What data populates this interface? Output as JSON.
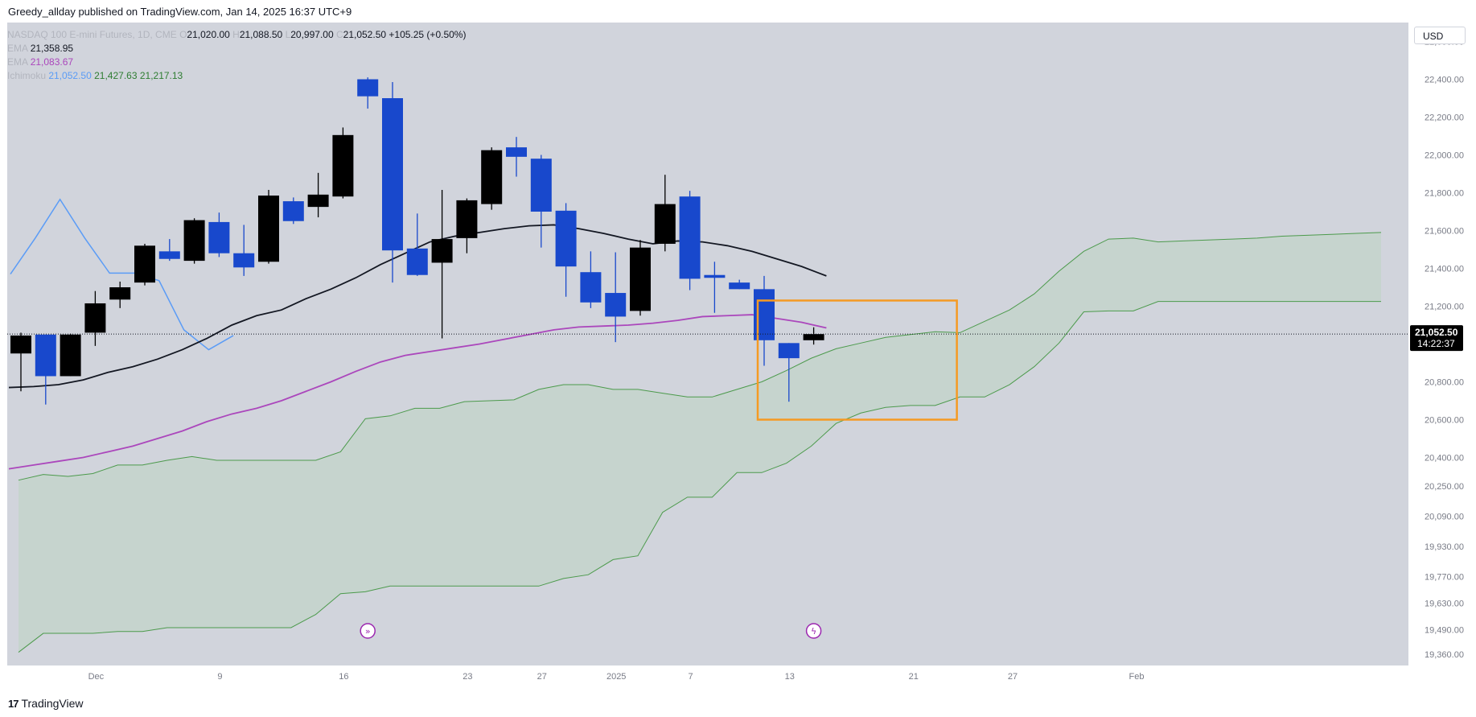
{
  "header": {
    "published_line": "Greedy_allday published on TradingView.com, Jan 14, 2025 16:37 UTC+9"
  },
  "legend": {
    "symbol": "NASDAQ 100 E-mini Futures, 1D, CME",
    "open_label": "O",
    "open": "21,020.00",
    "high_label": "H",
    "high": "21,088.50",
    "low_label": "L",
    "low": "20,997.00",
    "close_label": "C",
    "close": "21,052.50",
    "change": "+105.25 (+0.50%)",
    "ema1_label": "EMA",
    "ema1_value": "21,358.95",
    "ema2_label": "EMA",
    "ema2_value": "21,083.67",
    "ichimoku_label": "Ichimoku",
    "ichimoku_v1": "21,052.50",
    "ichimoku_v2": "21,427.63",
    "ichimoku_v3": "21,217.13"
  },
  "currency": "USD",
  "price_tag": {
    "price": "21,052.50",
    "countdown": "14:22:37"
  },
  "footer": {
    "brand": "TradingView",
    "logo": "17"
  },
  "colors": {
    "background": "#d1d4dc",
    "bull": "#000000",
    "bear": "#1848cc",
    "ema_long": "#131722",
    "ema_short": "#ab47bc",
    "cloud_line": "#4c9a4c",
    "cloud_fill": "#c2d4c8",
    "lagging": "#5b9cf6",
    "box": "#f59a23"
  },
  "chart_data": {
    "type": "candlestick",
    "title": "NASDAQ 100 E-mini Futures, 1D, CME",
    "y_ticks": [
      22600,
      22400,
      22200,
      22000,
      21800,
      21600,
      21400,
      21200,
      20800,
      20600,
      20400,
      20250,
      20090,
      19930,
      19770,
      19630,
      19490,
      19360
    ],
    "y_tick_labels": [
      "22,600.00",
      "22,400.00",
      "22,200.00",
      "22,000.00",
      "21,800.00",
      "21,600.00",
      "21,400.00",
      "21,200.00",
      "20,800.00",
      "20,600.00",
      "20,400.00",
      "20,250.00",
      "20,090.00",
      "19,930.00",
      "19,770.00",
      "19,630.00",
      "19,490.00",
      "19,360.00"
    ],
    "x_labels": [
      "Dec",
      "9",
      "16",
      "23",
      "27",
      "2025",
      "7",
      "13",
      "21",
      "27",
      "Feb"
    ],
    "candles": [
      {
        "o": 20950,
        "h": 21060,
        "l": 20750,
        "c": 21045
      },
      {
        "o": 21050,
        "h": 21050,
        "l": 20680,
        "c": 20830
      },
      {
        "o": 20830,
        "h": 21055,
        "l": 20830,
        "c": 21050
      },
      {
        "o": 21060,
        "h": 21280,
        "l": 20990,
        "c": 21215
      },
      {
        "o": 21235,
        "h": 21330,
        "l": 21190,
        "c": 21300
      },
      {
        "o": 21325,
        "h": 21530,
        "l": 21310,
        "c": 21520
      },
      {
        "o": 21490,
        "h": 21555,
        "l": 21440,
        "c": 21450
      },
      {
        "o": 21440,
        "h": 21665,
        "l": 21425,
        "c": 21655
      },
      {
        "o": 21645,
        "h": 21695,
        "l": 21460,
        "c": 21480
      },
      {
        "o": 21480,
        "h": 21630,
        "l": 21360,
        "c": 21405
      },
      {
        "o": 21435,
        "h": 21815,
        "l": 21425,
        "c": 21785
      },
      {
        "o": 21755,
        "h": 21775,
        "l": 21635,
        "c": 21650
      },
      {
        "o": 21725,
        "h": 21905,
        "l": 21670,
        "c": 21790
      },
      {
        "o": 21780,
        "h": 22145,
        "l": 21770,
        "c": 22105
      },
      {
        "o": 22400,
        "h": 22410,
        "l": 22245,
        "c": 22310
      },
      {
        "o": 22300,
        "h": 22385,
        "l": 21325,
        "c": 21495
      },
      {
        "o": 21505,
        "h": 21690,
        "l": 21360,
        "c": 21365
      },
      {
        "o": 21430,
        "h": 21815,
        "l": 21030,
        "c": 21555
      },
      {
        "o": 21560,
        "h": 21770,
        "l": 21480,
        "c": 21760
      },
      {
        "o": 21740,
        "h": 22040,
        "l": 21710,
        "c": 22025
      },
      {
        "o": 22040,
        "h": 22095,
        "l": 21885,
        "c": 21990
      },
      {
        "o": 21980,
        "h": 22000,
        "l": 21510,
        "c": 21700
      },
      {
        "o": 21705,
        "h": 21745,
        "l": 21250,
        "c": 21410
      },
      {
        "o": 21380,
        "h": 21490,
        "l": 21190,
        "c": 21220
      },
      {
        "o": 21270,
        "h": 21485,
        "l": 21010,
        "c": 21145
      },
      {
        "o": 21175,
        "h": 21550,
        "l": 21150,
        "c": 21510
      },
      {
        "o": 21530,
        "h": 21895,
        "l": 21490,
        "c": 21740
      },
      {
        "o": 21780,
        "h": 21810,
        "l": 21285,
        "c": 21345
      },
      {
        "o": 21365,
        "h": 21435,
        "l": 21165,
        "c": 21350
      },
      {
        "o": 21325,
        "h": 21340,
        "l": 21290,
        "c": 21290
      },
      {
        "o": 21290,
        "h": 21360,
        "l": 20885,
        "c": 21020
      },
      {
        "o": 21005,
        "h": 21005,
        "l": 20695,
        "c": 20925
      },
      {
        "o": 21020,
        "h": 21088.5,
        "l": 20997,
        "c": 21052.5
      }
    ],
    "ema_long": [
      20770,
      20775,
      20785,
      20810,
      20850,
      20880,
      20920,
      20970,
      21030,
      21100,
      21150,
      21180,
      21240,
      21290,
      21350,
      21420,
      21480,
      21540,
      21570,
      21590,
      21610,
      21625,
      21630,
      21610,
      21585,
      21555,
      21530,
      21545,
      21540,
      21520,
      21490,
      21450,
      21410,
      21360
    ],
    "ema_short": [
      20340,
      20360,
      20380,
      20400,
      20430,
      20460,
      20500,
      20540,
      20590,
      20630,
      20660,
      20700,
      20750,
      20800,
      20855,
      20905,
      20940,
      20960,
      20980,
      21000,
      21025,
      21050,
      21075,
      21090,
      21095,
      21100,
      21110,
      21125,
      21145,
      21150,
      21155,
      21135,
      21115,
      21085
    ],
    "lagging": [
      21370,
      21560,
      21765,
      21560,
      21375,
      21375,
      21335,
      21075,
      20970,
      21045
    ],
    "span_a": [
      20280,
      20310,
      20300,
      20315,
      20360,
      20360,
      20385,
      20405,
      20385,
      20385,
      20385,
      20385,
      20385,
      20430,
      20605,
      20620,
      20660,
      20660,
      20695,
      20700,
      20705,
      20760,
      20785,
      20785,
      20760,
      20760,
      20740,
      20720,
      20720,
      20760,
      20800,
      20860,
      20925,
      20975,
      21005,
      21035,
      21050,
      21065,
      21060,
      21120,
      21180,
      21265,
      21385,
      21490,
      21555,
      21560,
      21540,
      21545,
      21550,
      21555,
      21560,
      21570,
      21575,
      21580,
      21585,
      21590
    ],
    "span_b": [
      19370,
      19470,
      19470,
      19470,
      19480,
      19480,
      19500,
      19500,
      19500,
      19500,
      19500,
      19500,
      19570,
      19680,
      19690,
      19720,
      19720,
      19720,
      19720,
      19720,
      19720,
      19720,
      19760,
      19780,
      19860,
      19880,
      20110,
      20190,
      20190,
      20320,
      20320,
      20370,
      20460,
      20580,
      20635,
      20665,
      20675,
      20675,
      20720,
      20720,
      20785,
      20880,
      21005,
      21170,
      21175,
      21175,
      21225,
      21225,
      21225,
      21225,
      21225,
      21225,
      21225,
      21225,
      21225,
      21225
    ],
    "ylim": [
      19300,
      22700
    ],
    "highlight_box": {
      "x_from": 30,
      "x_to": 37,
      "y_low": 20600,
      "y_high": 21230
    }
  }
}
